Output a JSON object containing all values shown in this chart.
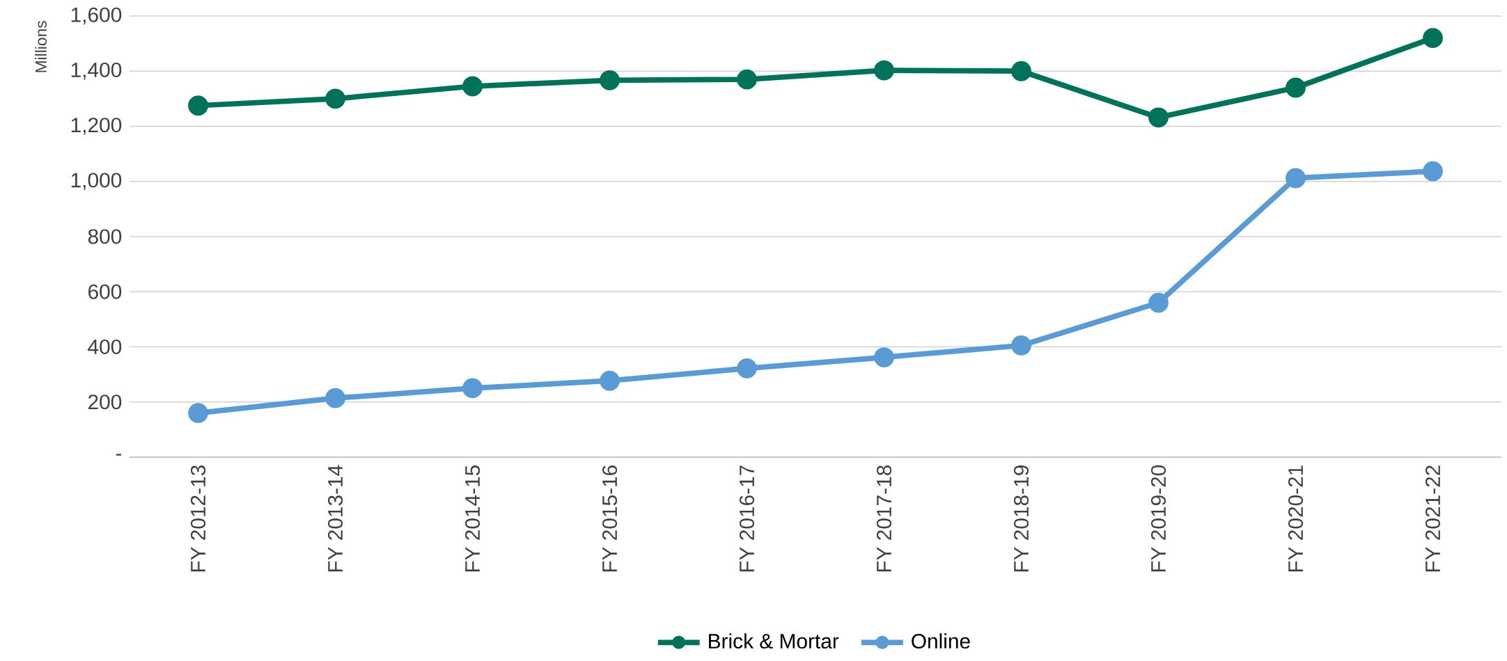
{
  "chart_data": {
    "type": "line",
    "ylabel": "Millions",
    "categories": [
      "FY 2012-13",
      "FY 2013-14",
      "FY 2014-15",
      "FY 2015-16",
      "FY 2016-17",
      "FY 2017-18",
      "FY 2018-19",
      "FY 2019-20",
      "FY 2020-21",
      "FY 2021-22"
    ],
    "series": [
      {
        "name": "Brick & Mortar",
        "color": "#00725a",
        "values": [
          1275,
          1300,
          1345,
          1367,
          1370,
          1403,
          1400,
          1232,
          1340,
          1520
        ]
      },
      {
        "name": "Online",
        "color": "#5b9bd5",
        "values": [
          160,
          214,
          250,
          277,
          322,
          362,
          405,
          560,
          1012,
          1037
        ]
      }
    ],
    "ylim": [
      0,
      1600
    ],
    "yticks": [
      {
        "value": 0,
        "label": "-"
      },
      {
        "value": 200,
        "label": "200"
      },
      {
        "value": 400,
        "label": "400"
      },
      {
        "value": 600,
        "label": "600"
      },
      {
        "value": 800,
        "label": "800"
      },
      {
        "value": 1000,
        "label": "1,000"
      },
      {
        "value": 1200,
        "label": "1,200"
      },
      {
        "value": 1400,
        "label": "1,400"
      },
      {
        "value": 1600,
        "label": "1,600"
      }
    ],
    "grid": "y",
    "legend": "bottom",
    "marker": "circle",
    "line_style": "solid"
  }
}
